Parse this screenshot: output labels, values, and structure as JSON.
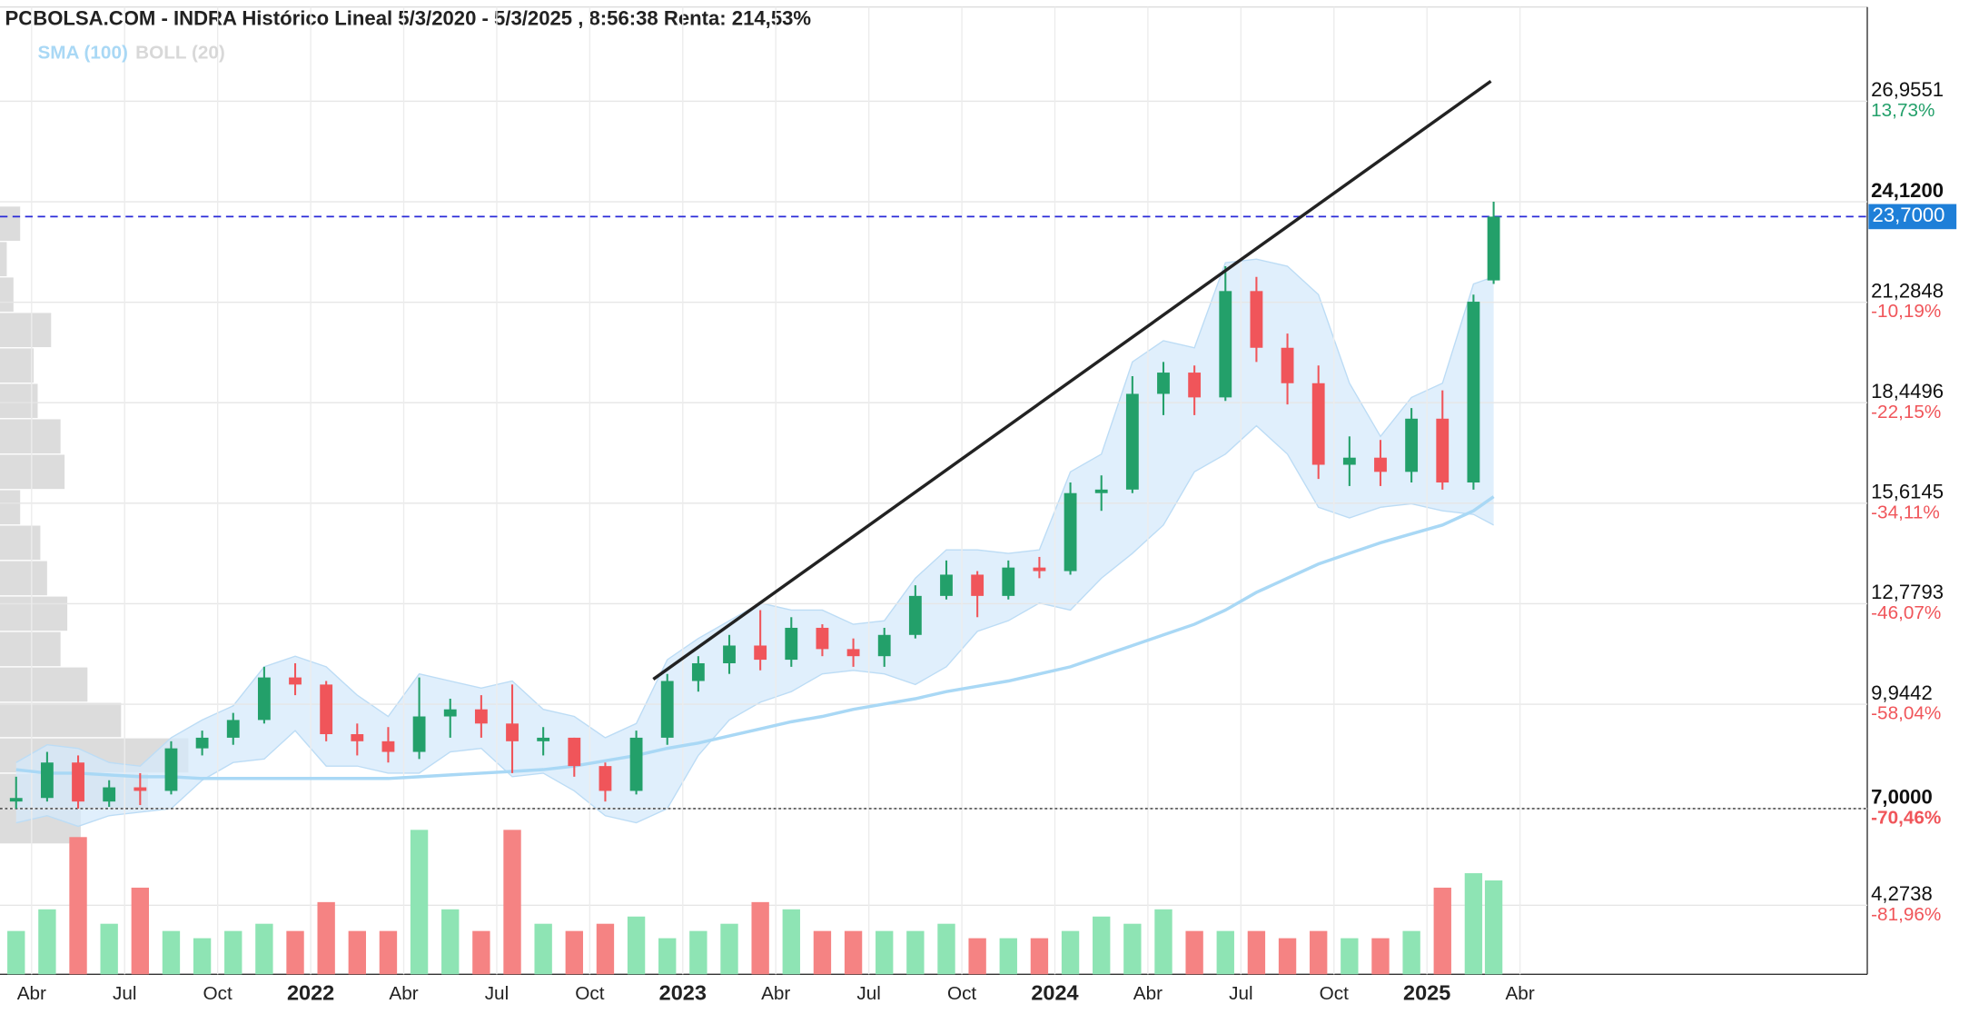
{
  "chart_data": {
    "type": "candlestick",
    "title": "PCBOLSA.COM - INDRA Histórico Lineal 5/3/2020 - 5/3/2025 , 8:56:38 Renta: 214,53%",
    "legend": [
      {
        "name": "SMA (100)",
        "color": "#a9d8f5"
      },
      {
        "name": "BOLL (20)",
        "color": "#d8d8d8"
      }
    ],
    "x": [
      2.5,
      3.5,
      4.5,
      5.5,
      6.5,
      7.5,
      8.5,
      9.5,
      10.5,
      11.5,
      12.5,
      13.5,
      14.5,
      15.5,
      16.5,
      17.5,
      18.5,
      19.5,
      20.5,
      21.5,
      22.5,
      23.5,
      24.5,
      25.5,
      26.5,
      27.5,
      28.5,
      29.5,
      30.5,
      31.5,
      32.5,
      33.5,
      34.5,
      35.5,
      36.5,
      37.5,
      38.5,
      39.5,
      40.5,
      41.5,
      42.5,
      43.5,
      44.5,
      45.5,
      46.5,
      47.5,
      48.5,
      49.5,
      50.15
    ],
    "candles": [
      [
        7.2,
        7.9,
        7.0,
        7.3
      ],
      [
        7.3,
        8.6,
        7.2,
        8.3
      ],
      [
        8.3,
        8.5,
        7.0,
        7.2
      ],
      [
        7.2,
        7.8,
        7.05,
        7.6
      ],
      [
        7.6,
        8.0,
        7.1,
        7.5
      ],
      [
        7.5,
        8.9,
        7.4,
        8.7
      ],
      [
        8.7,
        9.2,
        8.5,
        9.0
      ],
      [
        9.0,
        9.7,
        8.8,
        9.5
      ],
      [
        9.5,
        11.0,
        9.4,
        10.7
      ],
      [
        10.7,
        11.1,
        10.2,
        10.5
      ],
      [
        10.5,
        10.6,
        8.9,
        9.1
      ],
      [
        9.1,
        9.4,
        8.5,
        8.9
      ],
      [
        8.9,
        9.3,
        8.3,
        8.6
      ],
      [
        8.6,
        10.7,
        8.4,
        9.6
      ],
      [
        9.6,
        10.1,
        9.0,
        9.8
      ],
      [
        9.8,
        10.2,
        9.0,
        9.4
      ],
      [
        9.4,
        10.5,
        8.0,
        8.9
      ],
      [
        8.9,
        9.3,
        8.5,
        9.0
      ],
      [
        9.0,
        9.0,
        7.9,
        8.2
      ],
      [
        8.2,
        8.3,
        7.2,
        7.5
      ],
      [
        7.5,
        9.2,
        7.4,
        9.0
      ],
      [
        9.0,
        10.8,
        8.8,
        10.6
      ],
      [
        10.6,
        11.3,
        10.3,
        11.1
      ],
      [
        11.1,
        11.9,
        10.8,
        11.6
      ],
      [
        11.6,
        12.6,
        10.9,
        11.2
      ],
      [
        11.2,
        12.4,
        11.0,
        12.1
      ],
      [
        12.1,
        12.2,
        11.3,
        11.5
      ],
      [
        11.5,
        11.8,
        11.0,
        11.3
      ],
      [
        11.3,
        12.1,
        11.0,
        11.9
      ],
      [
        11.9,
        13.3,
        11.8,
        13.0
      ],
      [
        13.0,
        14.0,
        12.9,
        13.6
      ],
      [
        13.6,
        13.7,
        12.4,
        13.0
      ],
      [
        13.0,
        14.0,
        12.9,
        13.8
      ],
      [
        13.8,
        14.1,
        13.5,
        13.7
      ],
      [
        13.7,
        16.2,
        13.6,
        15.9
      ],
      [
        15.9,
        16.4,
        15.4,
        16.0
      ],
      [
        16.0,
        19.2,
        15.9,
        18.7
      ],
      [
        18.7,
        19.6,
        18.1,
        19.3
      ],
      [
        19.3,
        19.5,
        18.1,
        18.6
      ],
      [
        18.6,
        22.3,
        18.5,
        21.6
      ],
      [
        21.6,
        22.0,
        19.6,
        20.0
      ],
      [
        20.0,
        20.4,
        18.4,
        19.0
      ],
      [
        19.0,
        19.5,
        16.3,
        16.7
      ],
      [
        16.7,
        17.5,
        16.1,
        16.9
      ],
      [
        16.9,
        17.4,
        16.1,
        16.5
      ],
      [
        16.5,
        18.3,
        16.2,
        18.0
      ],
      [
        18.0,
        18.8,
        16.0,
        16.2
      ],
      [
        16.2,
        21.5,
        16.0,
        21.3
      ],
      [
        21.9,
        24.12,
        21.8,
        23.7
      ]
    ],
    "volume": [
      30,
      45,
      95,
      35,
      60,
      30,
      25,
      30,
      35,
      30,
      50,
      30,
      30,
      100,
      45,
      30,
      100,
      35,
      30,
      35,
      40,
      25,
      30,
      35,
      50,
      45,
      30,
      30,
      30,
      30,
      35,
      25,
      25,
      25,
      30,
      40,
      35,
      45,
      30,
      30,
      30,
      25,
      30,
      25,
      25,
      30,
      60,
      70,
      65
    ],
    "sma": [
      8.1,
      8.0,
      8.0,
      7.95,
      7.9,
      7.9,
      7.85,
      7.85,
      7.85,
      7.85,
      7.85,
      7.85,
      7.85,
      7.9,
      7.95,
      8.0,
      8.05,
      8.1,
      8.2,
      8.35,
      8.5,
      8.7,
      8.85,
      9.05,
      9.25,
      9.45,
      9.6,
      9.8,
      9.95,
      10.1,
      10.3,
      10.45,
      10.6,
      10.8,
      11.0,
      11.3,
      11.6,
      11.9,
      12.2,
      12.6,
      13.1,
      13.5,
      13.9,
      14.2,
      14.5,
      14.75,
      15.0,
      15.4,
      15.8
    ],
    "boll_upper": [
      8.3,
      8.8,
      8.7,
      8.3,
      8.2,
      9.0,
      9.5,
      9.9,
      11.0,
      11.3,
      11.0,
      10.2,
      9.6,
      10.8,
      10.6,
      10.4,
      10.6,
      9.8,
      9.6,
      9.0,
      9.4,
      11.2,
      11.8,
      12.3,
      12.8,
      12.6,
      12.6,
      12.2,
      12.3,
      13.5,
      14.3,
      14.3,
      14.2,
      14.3,
      16.5,
      17.0,
      19.6,
      20.2,
      20.0,
      22.4,
      22.5,
      22.3,
      21.5,
      19.0,
      17.5,
      18.6,
      19.0,
      21.8,
      22.0
    ],
    "boll_lower": [
      6.6,
      6.8,
      6.5,
      6.8,
      6.9,
      7.0,
      7.8,
      8.3,
      8.4,
      9.2,
      8.2,
      8.2,
      8.0,
      8.0,
      8.6,
      8.7,
      7.9,
      8.0,
      7.5,
      6.8,
      6.6,
      7.0,
      8.5,
      9.5,
      10.0,
      10.3,
      10.8,
      10.9,
      10.8,
      10.5,
      11.0,
      12.0,
      12.3,
      12.8,
      12.6,
      13.5,
      14.2,
      15.0,
      16.5,
      17.0,
      17.8,
      17.0,
      15.5,
      15.2,
      15.5,
      15.6,
      15.4,
      15.3,
      15.0
    ],
    "trendline": {
      "x": [
        23.05,
        50.06
      ],
      "y": [
        10.65,
        27.52
      ]
    },
    "last_price": {
      "value": 23.7,
      "label": "23,7000"
    },
    "volume_profile": {
      "bins": [
        6,
        7,
        8,
        9,
        10,
        11,
        12,
        13,
        14,
        15,
        16,
        17,
        18,
        19,
        20,
        21,
        22,
        23,
        24
      ],
      "values": [
        60,
        110,
        140,
        90,
        65,
        45,
        50,
        35,
        30,
        15,
        48,
        45,
        28,
        25,
        38,
        10,
        5,
        15
      ]
    },
    "xlim": [
      1.98,
      62.2
    ],
    "ylim": [
      2.325,
      29.613
    ],
    "xticks": [
      {
        "value": 3,
        "label": "Abr"
      },
      {
        "value": 6,
        "label": "Jul"
      },
      {
        "value": 9,
        "label": "Oct"
      },
      {
        "value": 12,
        "label": "2022"
      },
      {
        "value": 15,
        "label": "Abr"
      },
      {
        "value": 18,
        "label": "Jul"
      },
      {
        "value": 21,
        "label": "Oct"
      },
      {
        "value": 24,
        "label": "2023"
      },
      {
        "value": 27,
        "label": "Abr"
      },
      {
        "value": 30,
        "label": "Jul"
      },
      {
        "value": 33,
        "label": "Oct"
      },
      {
        "value": 36,
        "label": "2024"
      },
      {
        "value": 39,
        "label": "Abr"
      },
      {
        "value": 42,
        "label": "Jul"
      },
      {
        "value": 45,
        "label": "Oct"
      },
      {
        "value": 48,
        "label": "2025"
      },
      {
        "value": 51,
        "label": "Abr"
      }
    ],
    "yticks": [
      {
        "value": 26.9551,
        "label": "26,9551"
      },
      {
        "value": 24.12,
        "label": "24,1200"
      },
      {
        "value": 21.2848,
        "label": "21,2848"
      },
      {
        "value": 18.4496,
        "label": "18,4496"
      },
      {
        "value": 15.6145,
        "label": "15,6145"
      },
      {
        "value": 12.7793,
        "label": "12,7793"
      },
      {
        "value": 9.9442,
        "label": "9,9442"
      },
      {
        "value": 7.0,
        "label": "7,0000"
      },
      {
        "value": 4.2738,
        "label": "4,2738"
      }
    ],
    "ytick_changes": [
      "13,73%",
      null,
      "-10,19%",
      "-22,15%",
      "-34,11%",
      "-46,07%",
      "-58,04%",
      "-70,46%",
      "-81,96%"
    ],
    "colors": {
      "up": "#23a06a",
      "down": "#f0555a",
      "volume_up": "#8ee4b4",
      "volume_down": "#f58383",
      "band": "#d6eafb",
      "trendline": "#222222",
      "last_price": "#1e7fd8",
      "profile": "#d6d6d6"
    },
    "grid": true
  }
}
